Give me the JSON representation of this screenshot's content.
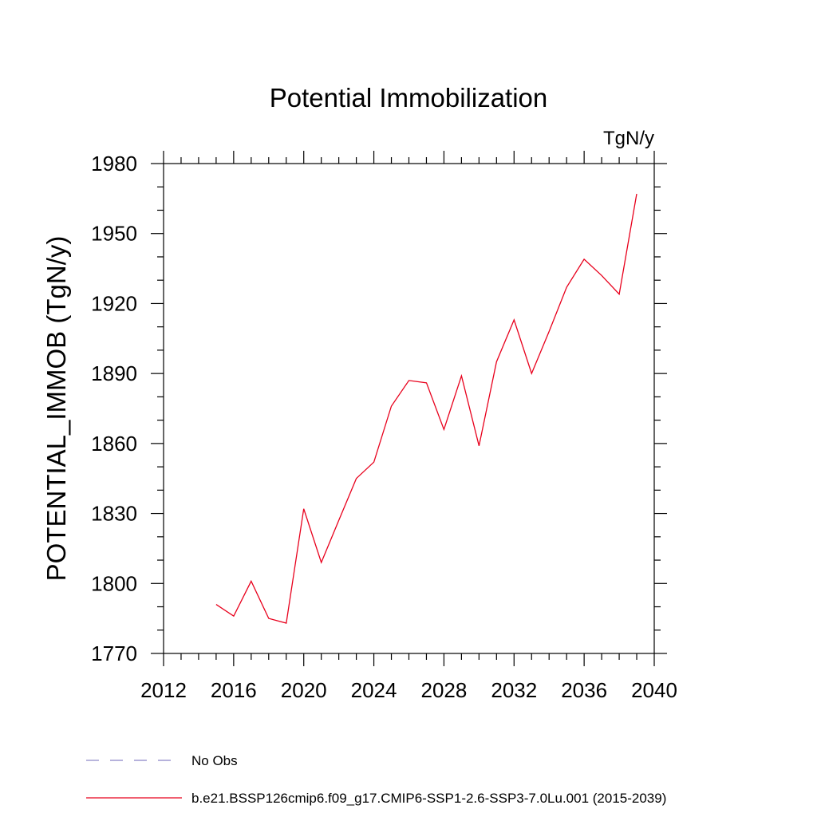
{
  "chart_data": {
    "type": "line",
    "title": "Potential Immobilization",
    "units_label": "TgN/y",
    "ylabel": "POTENTIAL_IMMOB  (TgN/y)",
    "xlabel": "",
    "xlim": [
      2012,
      2040
    ],
    "ylim": [
      1770,
      1980
    ],
    "x_ticks": [
      2012,
      2016,
      2020,
      2024,
      2028,
      2032,
      2036,
      2040
    ],
    "y_ticks": [
      1770,
      1800,
      1830,
      1860,
      1890,
      1920,
      1950,
      1980
    ],
    "grid": false,
    "legend_position": "bottom",
    "series": [
      {
        "name": "b.e21.BSSP126cmip6.f09_g17.CMIP6-SSP1-2.6-SSP3-7.0Lu.001 (2015-2039)",
        "color": "#e8001c",
        "style": "solid",
        "x": [
          2015,
          2016,
          2017,
          2018,
          2019,
          2020,
          2021,
          2022,
          2023,
          2024,
          2025,
          2026,
          2027,
          2028,
          2029,
          2030,
          2031,
          2032,
          2033,
          2034,
          2035,
          2036,
          2037,
          2038,
          2039
        ],
        "y": [
          1791,
          1786,
          1801,
          1785,
          1783,
          1832,
          1809,
          1827,
          1845,
          1852,
          1876,
          1887,
          1886,
          1866,
          1889,
          1859,
          1895,
          1913,
          1890,
          1908,
          1927,
          1939,
          1932,
          1924,
          1967
        ]
      }
    ],
    "legend": [
      {
        "label": "No Obs",
        "color": "#8a84c6",
        "style": "dashed"
      },
      {
        "label": "b.e21.BSSP126cmip6.f09_g17.CMIP6-SSP1-2.6-SSP3-7.0Lu.001 (2015-2039)",
        "color": "#e8001c",
        "style": "solid"
      }
    ]
  }
}
